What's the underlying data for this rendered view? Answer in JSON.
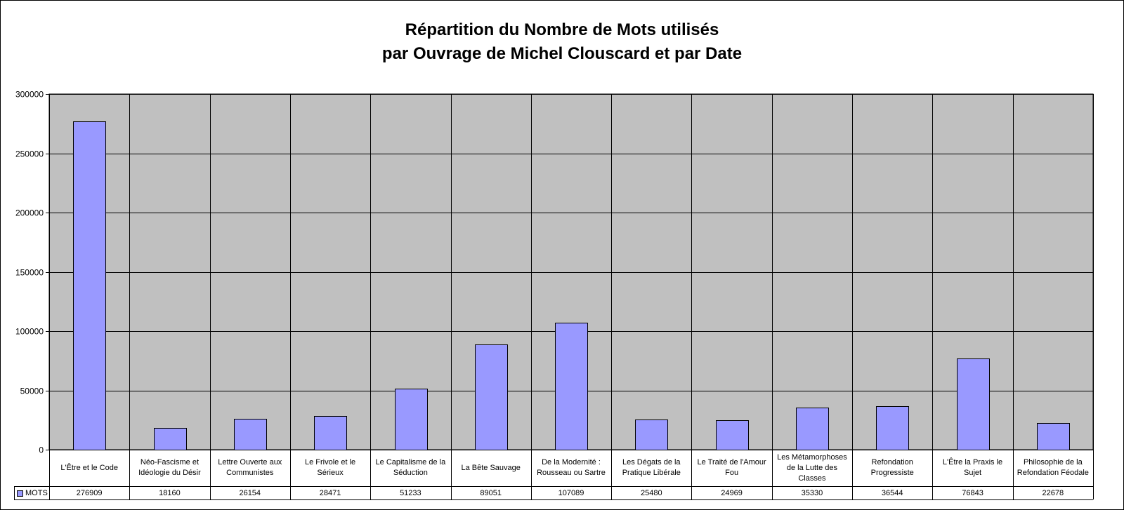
{
  "chart_data": {
    "type": "bar",
    "title_lines": [
      "Répartition du Nombre de Mots utilisés",
      "par Ouvrage de Michel Clouscard et par Date"
    ],
    "categories": [
      "L'Être et le Code",
      "Néo-Fascisme et Idéologie du Désir",
      "Lettre Ouverte aux Communistes",
      "Le Frivole et le Sérieux",
      "Le Capitalisme de la Séduction",
      "La  Bête Sauvage",
      "De la Modernité : Rousseau ou Sartre",
      "Les Dégats de la Pratique Libérale",
      "Le Traité de l'Amour Fou",
      "Les Métamorphoses de la Lutte des Classes",
      "Refondation Progressiste",
      "L'Être la Praxis le Sujet",
      "Philosophie de la Refondation Féodale"
    ],
    "series": [
      {
        "name": "MOTS",
        "values": [
          276909,
          18160,
          26154,
          28471,
          51233,
          89051,
          107089,
          25480,
          24969,
          35330,
          36544,
          76843,
          22678
        ],
        "value_labels": [
          "276909",
          "18160",
          "26154",
          "28471",
          "51233",
          "89051",
          "107089",
          "25480",
          "24969",
          "35330",
          "36544",
          "76843",
          "22678"
        ]
      }
    ],
    "ylim": [
      0,
      300000
    ],
    "yticks": [
      "300000",
      "250000",
      "200000",
      "150000",
      "100000",
      "50000",
      "0"
    ],
    "ytick_values": [
      300000,
      250000,
      200000,
      150000,
      100000,
      50000,
      0
    ],
    "grid": true,
    "legend": "data-table",
    "colors": {
      "bar": "#9999ff",
      "plot_bg": "#c0c0c0",
      "frame": "#000000"
    }
  }
}
